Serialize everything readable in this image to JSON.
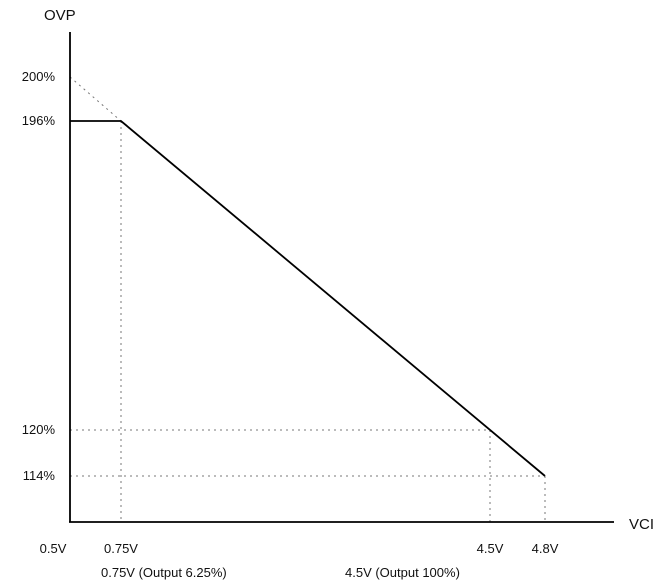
{
  "chart_data": {
    "type": "line",
    "title": "",
    "xlabel": "VCI",
    "ylabel": "OVP",
    "grid": false,
    "legend": "none",
    "line_color": "#000000",
    "guide_color": "#777777",
    "series": [
      {
        "x": [
          0.5,
          0.75,
          4.8
        ],
        "y": [
          196,
          196,
          114
        ]
      }
    ],
    "extrapolation": {
      "x": [
        0.5,
        0.75
      ],
      "y": [
        200,
        196
      ]
    },
    "x_ticks": [
      {
        "value": 0.5,
        "label": "0.5V"
      },
      {
        "value": 0.75,
        "label": "0.75V"
      },
      {
        "value": 4.5,
        "label": "4.5V"
      },
      {
        "value": 4.8,
        "label": "4.8V"
      }
    ],
    "y_ticks": [
      {
        "value": 200,
        "label": "200%"
      },
      {
        "value": 196,
        "label": "196%"
      },
      {
        "value": 120,
        "label": "120%"
      },
      {
        "value": 114,
        "label": "114%"
      }
    ],
    "guides": [
      {
        "x": 0.75,
        "y": 196
      },
      {
        "x": 4.5,
        "y": 120
      },
      {
        "x": 4.8,
        "y": 114
      }
    ],
    "annotations": [
      {
        "text": "0.75V (Output 6.25%)",
        "x": 0.75
      },
      {
        "text": "4.5V (Output 100%)",
        "x": 4.5
      }
    ]
  }
}
